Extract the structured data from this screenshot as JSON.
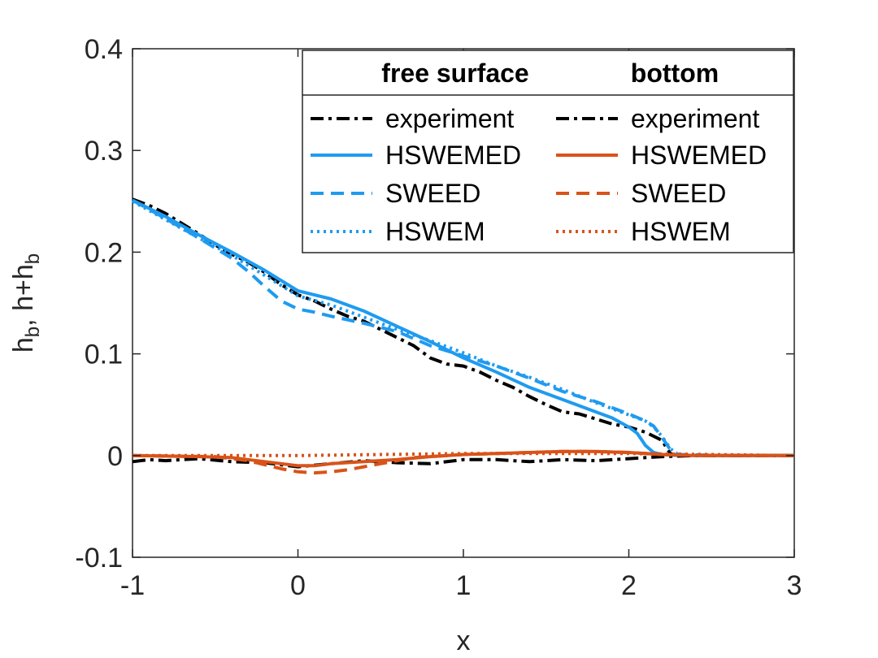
{
  "chart_data": {
    "type": "line",
    "title": "",
    "xlabel": "x",
    "ylabel": "h_b, h+h_b",
    "xlim": [
      -1,
      3
    ],
    "ylim": [
      -0.1,
      0.4
    ],
    "xticks": [
      -1,
      0,
      1,
      2,
      3
    ],
    "yticks": [
      -0.1,
      0,
      0.1,
      0.2,
      0.3,
      0.4
    ],
    "xtick_labels": [
      "-1",
      "0",
      "1",
      "2",
      "3"
    ],
    "ytick_labels": [
      "-0.1",
      "0",
      "0.1",
      "0.2",
      "0.3",
      "0.4"
    ],
    "grid": false,
    "colors": {
      "free_surface": "#1f9bf0",
      "bottom": "#d95319",
      "experiment": "#000000"
    },
    "legend": {
      "placement": "top-right",
      "column_headers": [
        "free surface",
        "bottom"
      ],
      "free_surface_entries": [
        "experiment",
        "HSWEMED",
        "SWEED",
        "HSWEM"
      ],
      "bottom_entries": [
        "experiment",
        "HSWEMED",
        "SWEED",
        "HSWEM"
      ]
    },
    "series": [
      {
        "name": "experiment (free surface)",
        "group": "free_surface",
        "style": "dashdot",
        "color": "#000000",
        "x": [
          -1,
          -0.9,
          -0.8,
          -0.7,
          -0.6,
          -0.5,
          -0.4,
          -0.3,
          -0.2,
          -0.1,
          0,
          0.1,
          0.2,
          0.3,
          0.4,
          0.5,
          0.6,
          0.7,
          0.8,
          0.9,
          1.0,
          1.1,
          1.2,
          1.3,
          1.4,
          1.5,
          1.6,
          1.7,
          1.8,
          1.9,
          2.0,
          2.1,
          2.2,
          2.25,
          2.3
        ],
        "y": [
          0.252,
          0.246,
          0.238,
          0.228,
          0.218,
          0.207,
          0.198,
          0.19,
          0.18,
          0.168,
          0.158,
          0.152,
          0.144,
          0.137,
          0.132,
          0.124,
          0.116,
          0.108,
          0.096,
          0.09,
          0.088,
          0.082,
          0.074,
          0.067,
          0.058,
          0.05,
          0.043,
          0.041,
          0.036,
          0.031,
          0.028,
          0.023,
          0.015,
          0.002,
          0.0
        ]
      },
      {
        "name": "HSWEMED (free surface)",
        "group": "free_surface",
        "style": "solid",
        "color": "#1f9bf0",
        "x": [
          -1,
          -0.8,
          -0.6,
          -0.4,
          -0.2,
          -0.1,
          0,
          0.2,
          0.4,
          0.6,
          0.8,
          1.0,
          1.2,
          1.4,
          1.6,
          1.8,
          1.9,
          2.0,
          2.05,
          2.1,
          2.15,
          2.2,
          2.3,
          2.6,
          3.0
        ],
        "y": [
          0.251,
          0.235,
          0.217,
          0.2,
          0.182,
          0.172,
          0.162,
          0.154,
          0.142,
          0.127,
          0.112,
          0.096,
          0.082,
          0.067,
          0.055,
          0.043,
          0.037,
          0.028,
          0.022,
          0.01,
          0.003,
          0.001,
          0.0,
          0.0,
          0.0
        ]
      },
      {
        "name": "SWEED (free surface)",
        "group": "free_surface",
        "style": "dashed",
        "color": "#1f9bf0",
        "x": [
          -1,
          -0.8,
          -0.6,
          -0.4,
          -0.3,
          -0.2,
          -0.1,
          0,
          0.1,
          0.2,
          0.4,
          0.6,
          0.8,
          1.0,
          1.2,
          1.4,
          1.6,
          1.8,
          2.0,
          2.1,
          2.15,
          2.2,
          2.25,
          2.3,
          2.6,
          3.0
        ],
        "y": [
          0.251,
          0.233,
          0.214,
          0.194,
          0.181,
          0.166,
          0.152,
          0.144,
          0.141,
          0.137,
          0.13,
          0.122,
          0.108,
          0.098,
          0.088,
          0.076,
          0.063,
          0.053,
          0.041,
          0.034,
          0.029,
          0.018,
          0.006,
          0.001,
          0.0,
          0.0
        ]
      },
      {
        "name": "HSWEM (free surface)",
        "group": "free_surface",
        "style": "dotted",
        "color": "#1f9bf0",
        "x": [
          -1,
          -0.8,
          -0.6,
          -0.4,
          -0.2,
          0,
          0.2,
          0.4,
          0.6,
          0.8,
          1.0,
          1.2,
          1.4,
          1.6,
          1.8,
          2.0,
          2.1,
          2.15,
          2.2,
          2.25,
          2.3,
          2.6,
          3.0
        ],
        "y": [
          0.25,
          0.232,
          0.214,
          0.197,
          0.177,
          0.157,
          0.148,
          0.136,
          0.124,
          0.113,
          0.101,
          0.088,
          0.077,
          0.065,
          0.052,
          0.04,
          0.034,
          0.028,
          0.019,
          0.007,
          0.0,
          0.0,
          0.0
        ]
      },
      {
        "name": "experiment (bottom)",
        "group": "bottom",
        "style": "dashdot",
        "color": "#000000",
        "x": [
          -1,
          -0.9,
          -0.8,
          -0.6,
          -0.4,
          -0.2,
          0,
          0.2,
          0.4,
          0.6,
          0.8,
          1.0,
          1.2,
          1.4,
          1.6,
          1.8,
          2.0,
          2.2,
          2.4,
          2.6,
          3.0
        ],
        "y": [
          -0.006,
          -0.004,
          -0.005,
          -0.003,
          -0.006,
          -0.007,
          -0.011,
          -0.008,
          -0.005,
          -0.007,
          -0.008,
          -0.004,
          -0.004,
          -0.006,
          -0.004,
          -0.005,
          -0.003,
          -0.001,
          0.0,
          0.0,
          0.0
        ]
      },
      {
        "name": "HSWEMED (bottom)",
        "group": "bottom",
        "style": "solid",
        "color": "#d95319",
        "x": [
          -1,
          -0.6,
          -0.4,
          -0.2,
          0,
          0.1,
          0.2,
          0.4,
          0.6,
          0.8,
          1.0,
          1.2,
          1.4,
          1.6,
          1.8,
          2.0,
          2.2,
          2.4,
          3.0
        ],
        "y": [
          0.0,
          -0.001,
          -0.002,
          -0.006,
          -0.01,
          -0.01,
          -0.008,
          -0.006,
          -0.004,
          -0.001,
          0.001,
          0.002,
          0.003,
          0.004,
          0.004,
          0.003,
          0.001,
          0.0,
          0.0
        ]
      },
      {
        "name": "SWEED (bottom)",
        "group": "bottom",
        "style": "dashed",
        "color": "#d95319",
        "x": [
          -1,
          -0.5,
          -0.3,
          -0.1,
          0,
          0.1,
          0.2,
          0.3,
          0.5,
          0.7,
          1.0,
          1.2,
          1.4,
          1.6,
          1.8,
          2.0,
          2.2,
          2.4,
          3.0
        ],
        "y": [
          0.0,
          -0.001,
          -0.005,
          -0.013,
          -0.016,
          -0.017,
          -0.016,
          -0.014,
          -0.008,
          -0.002,
          0.001,
          0.002,
          0.003,
          0.004,
          0.004,
          0.003,
          0.001,
          0.0,
          0.0
        ]
      },
      {
        "name": "HSWEM (bottom)",
        "group": "bottom",
        "style": "dotted",
        "color": "#d95319",
        "x": [
          -1,
          -0.5,
          0,
          0.5,
          1.0,
          1.5,
          2.0,
          2.5,
          3.0
        ],
        "y": [
          0.0,
          0.0,
          0.0,
          0.001,
          0.002,
          0.002,
          0.002,
          0.001,
          0.0
        ]
      }
    ]
  }
}
